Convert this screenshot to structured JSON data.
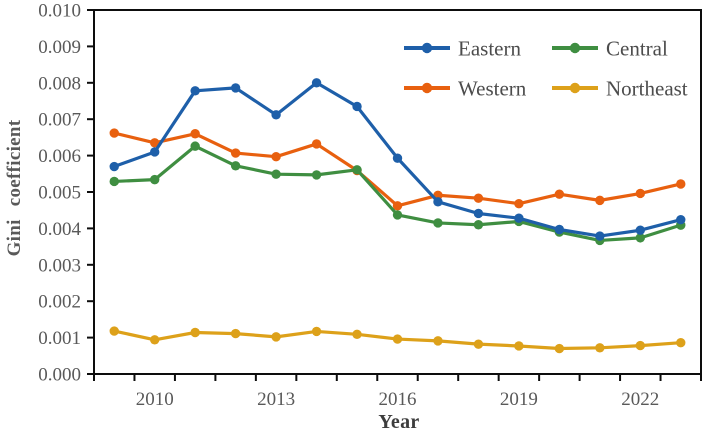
{
  "page": {
    "background": "#ffffff"
  },
  "chart_data": {
    "type": "line",
    "title": "",
    "xlabel": "Year",
    "ylabel": "Gini coefficient",
    "x": [
      2009,
      2010,
      2011,
      2012,
      2013,
      2014,
      2015,
      2016,
      2017,
      2018,
      2019,
      2020,
      2021,
      2022,
      2023
    ],
    "x_shown_tick_labels": [
      "2010",
      "2013",
      "2016",
      "2019",
      "2022"
    ],
    "ylim": [
      0.0,
      0.01
    ],
    "y_tick_step": 0.001,
    "y_tick_labels": [
      "0.000",
      "0.001",
      "0.002",
      "0.003",
      "0.004",
      "0.005",
      "0.006",
      "0.007",
      "0.008",
      "0.009",
      "0.010"
    ],
    "grid": false,
    "legend": {
      "position": "top-right-inside",
      "columns": 2,
      "entries": [
        "Eastern",
        "Central",
        "Western",
        "Northeast"
      ]
    },
    "series": [
      {
        "name": "Eastern",
        "color": "#1e5fa9",
        "values": [
          0.0057,
          0.0061,
          0.00778,
          0.00786,
          0.00712,
          0.008,
          0.00735,
          0.00593,
          0.00473,
          0.00441,
          0.00428,
          0.00397,
          0.00379,
          0.00395,
          0.00424
        ]
      },
      {
        "name": "Central",
        "color": "#3f8e41",
        "values": [
          0.00529,
          0.00534,
          0.00626,
          0.00572,
          0.00549,
          0.00547,
          0.00561,
          0.00437,
          0.00415,
          0.0041,
          0.00419,
          0.0039,
          0.00367,
          0.00374,
          0.00409
        ]
      },
      {
        "name": "Western",
        "color": "#e8600f",
        "values": [
          0.00662,
          0.00635,
          0.0066,
          0.00607,
          0.00597,
          0.00632,
          0.00559,
          0.00462,
          0.00491,
          0.00483,
          0.00468,
          0.00494,
          0.00477,
          0.00496,
          0.00522
        ]
      },
      {
        "name": "Northeast",
        "color": "#dda11a",
        "values": [
          0.00118,
          0.00094,
          0.00114,
          0.00111,
          0.00102,
          0.00117,
          0.00109,
          0.00096,
          0.00091,
          0.00082,
          0.00077,
          0.0007,
          0.00072,
          0.00078,
          0.00086
        ]
      }
    ]
  },
  "style": {
    "axis_text_color": "#595959",
    "axis_line_color": "#0d0d0d",
    "legend_text_color": "#4c4c4c",
    "axis_title_color": "#3d3d3d"
  }
}
